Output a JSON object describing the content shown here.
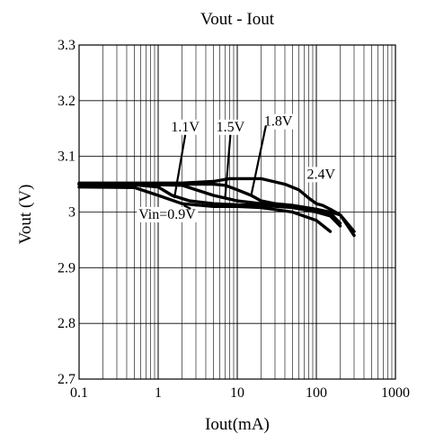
{
  "chart_data": {
    "type": "line",
    "title": "Vout - Iout",
    "xlabel": "Iout(mA)",
    "ylabel": "Vout (V)",
    "x_scale": "log",
    "xlim": [
      0.1,
      1000
    ],
    "ylim": [
      2.7,
      3.3
    ],
    "x_ticks": [
      0.1,
      1,
      10,
      100,
      1000
    ],
    "x_tick_labels": [
      "0.1",
      "1",
      "10",
      "100",
      "1000"
    ],
    "y_ticks": [
      2.7,
      2.8,
      2.9,
      3.0,
      3.1,
      3.2,
      3.3
    ],
    "y_tick_labels": [
      "2.7",
      "2.8",
      "2.9",
      "3",
      "3.1",
      "3.2",
      "3.3"
    ],
    "grid": true,
    "legend": "none",
    "line_color": "#000000",
    "series": [
      {
        "name": "Vin=0.9V",
        "x": [
          0.1,
          0.5,
          1,
          2,
          5,
          10,
          20,
          50,
          100,
          150
        ],
        "y": [
          3.045,
          3.044,
          3.03,
          3.015,
          3.01,
          3.01,
          3.008,
          3.0,
          2.985,
          2.965
        ]
      },
      {
        "name": "1.1V",
        "x": [
          0.1,
          0.5,
          1,
          1.5,
          2.5,
          5,
          10,
          20,
          50,
          100,
          150,
          200
        ],
        "y": [
          3.05,
          3.049,
          3.045,
          3.03,
          3.02,
          3.015,
          3.013,
          3.012,
          3.008,
          3.0,
          2.993,
          2.975
        ]
      },
      {
        "name": "1.5V",
        "x": [
          0.1,
          0.5,
          1,
          2,
          3,
          5,
          10,
          20,
          50,
          100,
          150,
          200
        ],
        "y": [
          3.05,
          3.05,
          3.049,
          3.048,
          3.04,
          3.03,
          3.02,
          3.015,
          3.01,
          3.005,
          2.998,
          2.98
        ]
      },
      {
        "name": "1.8V",
        "x": [
          0.1,
          0.5,
          1,
          2,
          5,
          7,
          10,
          15,
          20,
          30,
          50,
          100,
          150,
          200,
          300
        ],
        "y": [
          3.05,
          3.05,
          3.05,
          3.05,
          3.05,
          3.048,
          3.04,
          3.03,
          3.02,
          3.015,
          3.012,
          3.005,
          3.0,
          2.995,
          2.965
        ]
      },
      {
        "name": "2.4V",
        "x": [
          0.1,
          1,
          2,
          5,
          8,
          10,
          20,
          40,
          60,
          80,
          100,
          120,
          150,
          200,
          250,
          300
        ],
        "y": [
          3.052,
          3.052,
          3.052,
          3.055,
          3.06,
          3.06,
          3.06,
          3.05,
          3.04,
          3.025,
          3.015,
          3.012,
          3.005,
          2.995,
          2.975,
          2.958
        ]
      }
    ],
    "annotations": [
      {
        "text": "Vin=0.9V",
        "x": 1.3,
        "y": 2.988,
        "arrow_to_x": 2.1,
        "arrow_to_y": 3.012
      },
      {
        "text": "1.1V",
        "x": 2.2,
        "y": 3.145,
        "arrow_to_x": 1.6,
        "arrow_to_y": 3.025
      },
      {
        "text": "1.5V",
        "x": 8.2,
        "y": 3.145,
        "arrow_to_x": 7.0,
        "arrow_to_y": 3.024
      },
      {
        "text": "1.8V",
        "x": 33,
        "y": 3.155,
        "arrow_to_x": 15,
        "arrow_to_y": 3.03
      },
      {
        "text": "2.4V",
        "x": 115,
        "y": 3.06
      }
    ]
  }
}
